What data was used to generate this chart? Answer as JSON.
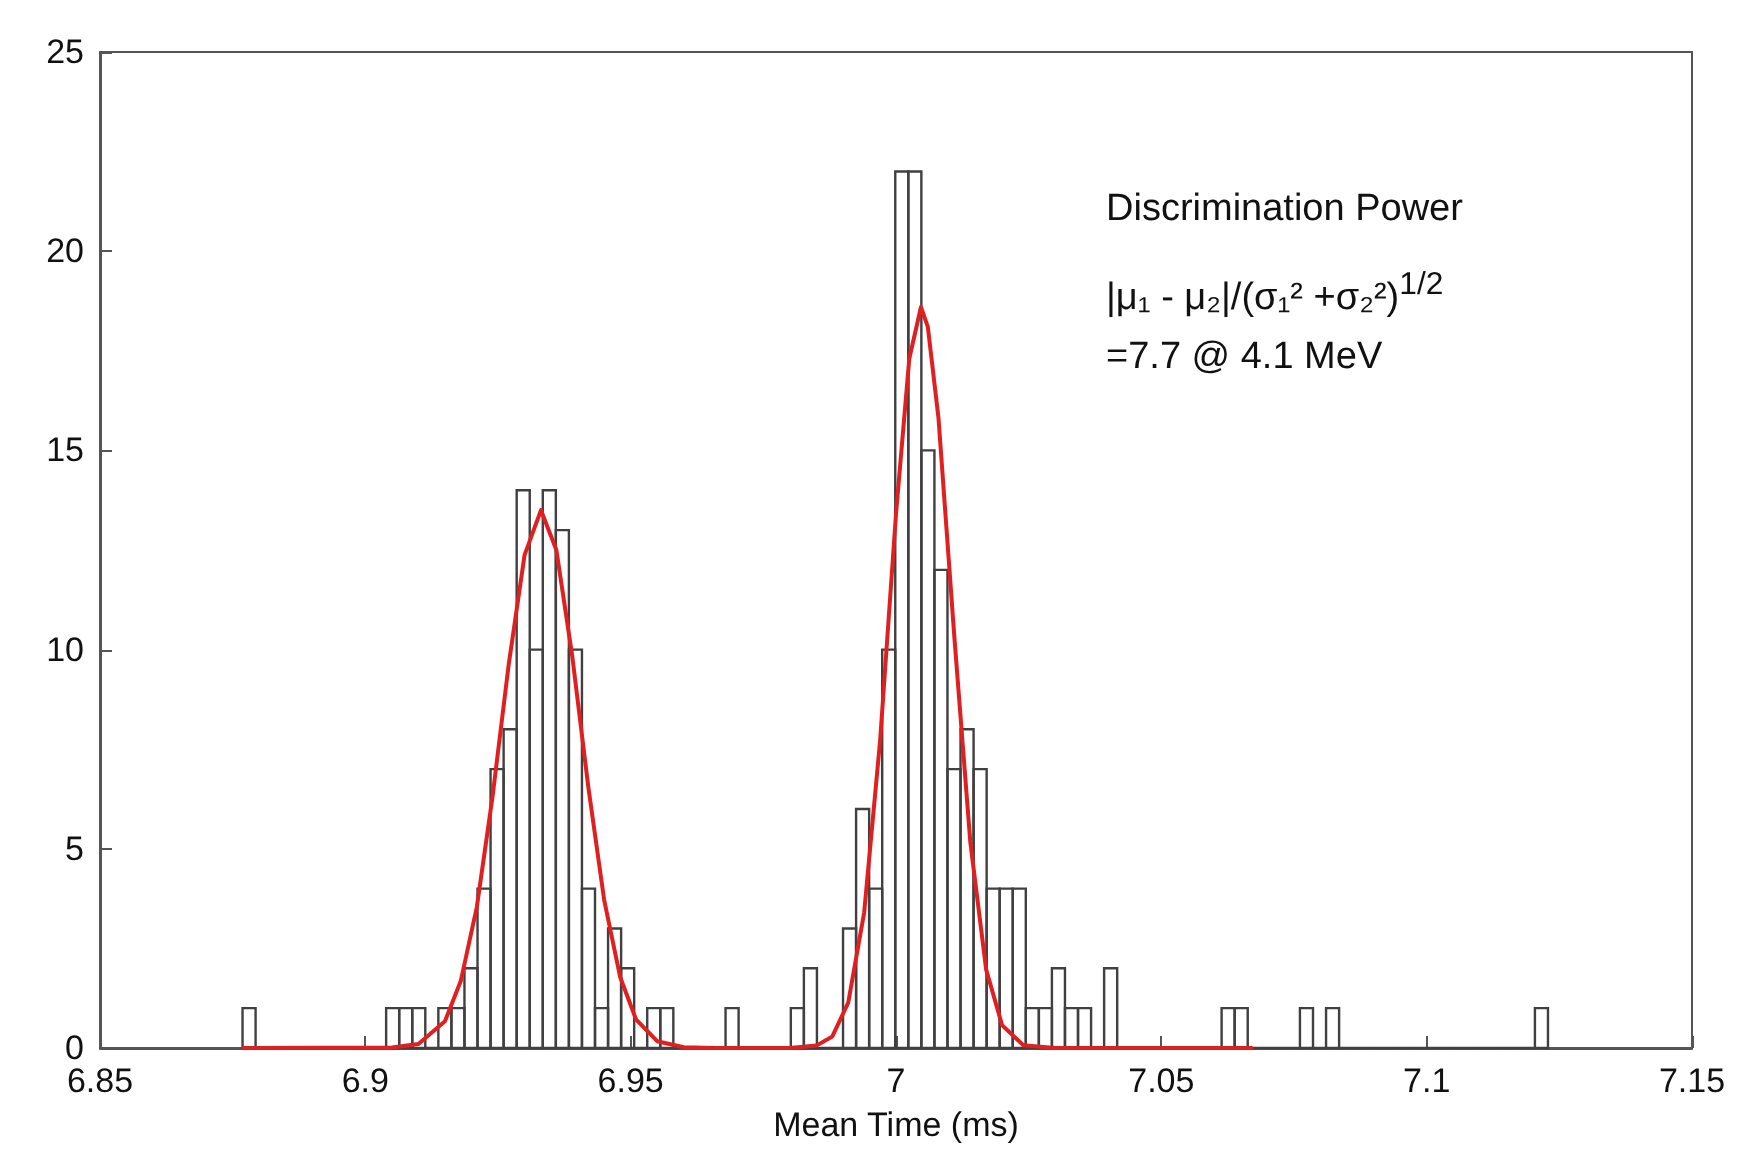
{
  "chart_data": {
    "type": "histogram",
    "xlabel": "Mean Time (ms)",
    "color": "#404040",
    "bins": [
      6.87686,
      6.87932,
      6.88178,
      6.88424,
      6.8867,
      6.88916,
      6.89162,
      6.89408,
      6.89654,
      6.899,
      6.90146,
      6.90392,
      6.90638,
      6.90884,
      6.9113,
      6.91376,
      6.91622,
      6.91868,
      6.92114,
      6.9236,
      6.92606,
      6.92852,
      6.93098,
      6.93344,
      6.9359,
      6.93836,
      6.94082,
      6.94328,
      6.94574,
      6.9482,
      6.95066,
      6.95312,
      6.95558,
      6.95804,
      6.9605,
      6.96296,
      6.96542,
      6.96788,
      6.97034,
      6.9728,
      6.97526,
      6.97772,
      6.98018,
      6.98264,
      6.9851,
      6.98756,
      6.99002,
      6.99248,
      6.99494,
      6.9974,
      6.99986,
      7.00232,
      7.00478,
      7.00724,
      7.0097,
      7.01216,
      7.01462,
      7.01708,
      7.01954,
      7.022,
      7.02446,
      7.02692,
      7.02938,
      7.03184,
      7.0343,
      7.03676,
      7.03922,
      7.04168,
      7.04414,
      7.0466,
      7.04906,
      7.05152,
      7.05398,
      7.05644,
      7.0589,
      7.06136,
      7.06382,
      7.06628,
      7.06874,
      7.0712,
      7.07366,
      7.07612,
      7.07858,
      7.08104,
      7.0835,
      7.08596,
      7.08842,
      7.09088,
      7.09334,
      7.0958,
      7.09826,
      7.10072,
      7.10318,
      7.10564,
      7.1081,
      7.11056,
      7.11302,
      7.11548,
      7.11794,
      7.1204,
      7.12286
    ],
    "values": [
      1,
      0,
      0,
      0,
      0,
      0,
      0,
      0,
      0,
      0,
      0,
      1,
      1,
      1,
      0,
      1,
      1,
      2,
      4,
      7,
      8,
      14,
      10,
      14,
      13,
      10,
      4,
      1,
      3,
      2,
      0,
      1,
      1,
      0,
      0,
      0,
      0,
      1,
      0,
      0,
      0,
      0,
      1,
      2,
      0,
      0,
      3,
      6,
      4,
      10,
      22,
      22,
      15,
      12,
      7,
      8,
      7,
      4,
      4,
      4,
      1,
      1,
      2,
      1,
      1,
      0,
      2,
      0,
      0,
      0,
      0,
      0,
      0,
      0,
      0,
      1,
      1,
      0,
      0,
      0,
      0,
      1,
      0,
      1,
      0,
      0,
      0,
      0,
      0,
      0,
      0,
      0,
      0,
      0,
      0,
      0,
      0,
      0,
      0,
      1
    ],
    "series": [
      {
        "type": "line",
        "color": "#e02020",
        "x": [
          6.877,
          6.905,
          6.91,
          6.915,
          6.918,
          6.921,
          6.924,
          6.927,
          6.93,
          6.9331,
          6.936,
          6.939,
          6.942,
          6.945,
          6.948,
          6.951,
          6.955,
          6.96,
          6.966
        ],
        "values": [
          0,
          0.01,
          0.1,
          0.67,
          1.69,
          3.53,
          6.34,
          9.61,
          12.37,
          13.5,
          12.5,
          9.83,
          6.57,
          3.72,
          1.79,
          0.72,
          0.17,
          0.02,
          0
        ]
      },
      {
        "type": "line",
        "color": "#e02020",
        "x": [
          6.96,
          6.98,
          6.985,
          6.988,
          6.991,
          6.994,
          6.997,
          7.0,
          7.0025,
          7.0047,
          7.006,
          7.008,
          7.011,
          7.014,
          7.017,
          7.02,
          7.024,
          7.03,
          7.04,
          7.067
        ],
        "values": [
          0,
          0,
          0.06,
          0.29,
          1.14,
          3.4,
          7.71,
          13.4,
          17.3,
          18.6,
          18.1,
          15.82,
          10.31,
          5.17,
          1.96,
          0.57,
          0.07,
          0,
          0,
          0
        ]
      }
    ],
    "xlim": [
      6.85,
      7.15
    ],
    "xticks": [
      6.85,
      6.9,
      6.95,
      7,
      7.05,
      7.1,
      7.15
    ],
    "ylim": [
      0,
      25
    ],
    "yticks": [
      0,
      5,
      10,
      15,
      20,
      25
    ],
    "grid": false,
    "marker": "none",
    "line_style": "solid",
    "annotations": [
      "Discrimination Power",
      "|μ₁ - μ₂|/(σ₁² +σ₂²)$^{1/2}$",
      "=7.7 @ 4.1 MeV"
    ]
  }
}
